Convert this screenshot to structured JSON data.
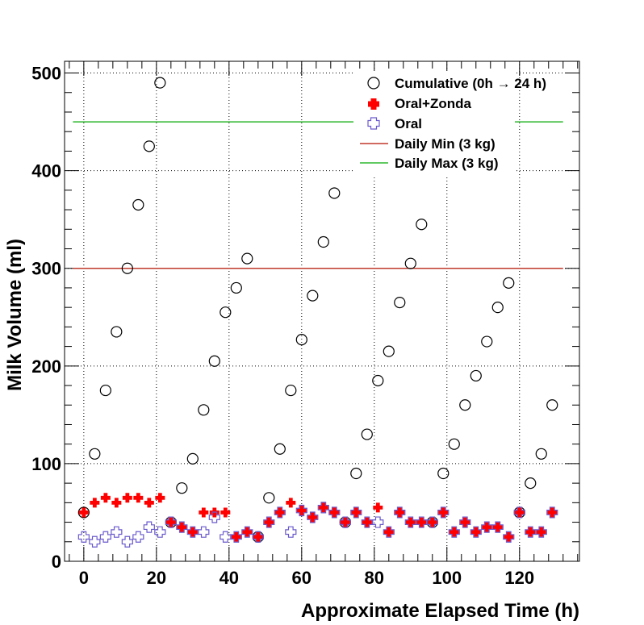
{
  "chart_data": {
    "type": "scatter",
    "title": "",
    "xlabel": "Approximate Elapsed Time (h)",
    "ylabel": "Milk Volume (ml)",
    "xlim": [
      -5.3,
      136.5
    ],
    "ylim": [
      0,
      512
    ],
    "xticks": [
      0,
      20,
      40,
      60,
      80,
      100,
      120
    ],
    "yticks": [
      0,
      100,
      200,
      300,
      400,
      500
    ],
    "grid": true,
    "legend_position": "top-right",
    "series": [
      {
        "name": "Cumulative (0h → 24 h)",
        "marker": "open-circle",
        "color": "#000000",
        "x": [
          0,
          3,
          6,
          9,
          12,
          15,
          18,
          21,
          24,
          27,
          30,
          33,
          36,
          39,
          42,
          45,
          48,
          51,
          54,
          57,
          60,
          63,
          66,
          69,
          72,
          75,
          78,
          81,
          84,
          87,
          90,
          93,
          96,
          99,
          102,
          105,
          108,
          111,
          114,
          117,
          120,
          123,
          126,
          129
        ],
        "y": [
          50,
          110,
          175,
          235,
          300,
          365,
          425,
          490,
          40,
          75,
          105,
          155,
          205,
          255,
          280,
          310,
          25,
          65,
          115,
          175,
          227,
          272,
          327,
          377,
          40,
          90,
          130,
          185,
          215,
          265,
          305,
          345,
          40,
          90,
          120,
          160,
          190,
          225,
          260,
          285,
          50,
          80,
          110,
          160
        ]
      },
      {
        "name": "Oral+Zonda",
        "marker": "filled-cross",
        "color": "#ff0000",
        "x": [
          0,
          3,
          6,
          9,
          12,
          15,
          18,
          21,
          24,
          27,
          30,
          33,
          36,
          39,
          42,
          45,
          48,
          51,
          54,
          57,
          60,
          63,
          66,
          69,
          72,
          75,
          78,
          81,
          84,
          87,
          90,
          93,
          96,
          99,
          102,
          105,
          108,
          111,
          114,
          117,
          120,
          123,
          126,
          129
        ],
        "y": [
          50,
          60,
          65,
          60,
          65,
          65,
          60,
          65,
          40,
          35,
          30,
          50,
          50,
          50,
          25,
          30,
          25,
          40,
          50,
          60,
          52,
          45,
          55,
          50,
          40,
          50,
          40,
          55,
          30,
          50,
          40,
          40,
          40,
          50,
          30,
          40,
          30,
          35,
          35,
          25,
          50,
          30,
          30,
          50
        ]
      },
      {
        "name": "Oral",
        "marker": "open-cross",
        "color": "#6a5acd",
        "x": [
          0,
          3,
          6,
          9,
          12,
          15,
          18,
          21,
          24,
          27,
          30,
          33,
          36,
          39,
          42,
          45,
          48,
          51,
          54,
          57,
          60,
          63,
          66,
          69,
          72,
          75,
          78,
          81,
          84,
          87,
          90,
          93,
          96,
          99,
          102,
          105,
          108,
          111,
          114,
          117,
          120,
          123,
          126,
          129
        ],
        "y": [
          25,
          20,
          25,
          30,
          20,
          25,
          35,
          30,
          40,
          35,
          30,
          30,
          45,
          25,
          25,
          30,
          25,
          40,
          50,
          30,
          52,
          45,
          55,
          50,
          40,
          50,
          40,
          40,
          30,
          50,
          40,
          40,
          40,
          50,
          30,
          40,
          30,
          35,
          35,
          25,
          50,
          30,
          30,
          50
        ]
      }
    ],
    "lines": [
      {
        "name": "Daily Min (3 kg)",
        "y": 300,
        "color": "#c0392b",
        "x_range": [
          -3,
          132
        ]
      },
      {
        "name": "Daily Max (3 kg)",
        "y": 450,
        "color": "#2eb82e",
        "x_range": [
          -3,
          132
        ]
      }
    ]
  }
}
